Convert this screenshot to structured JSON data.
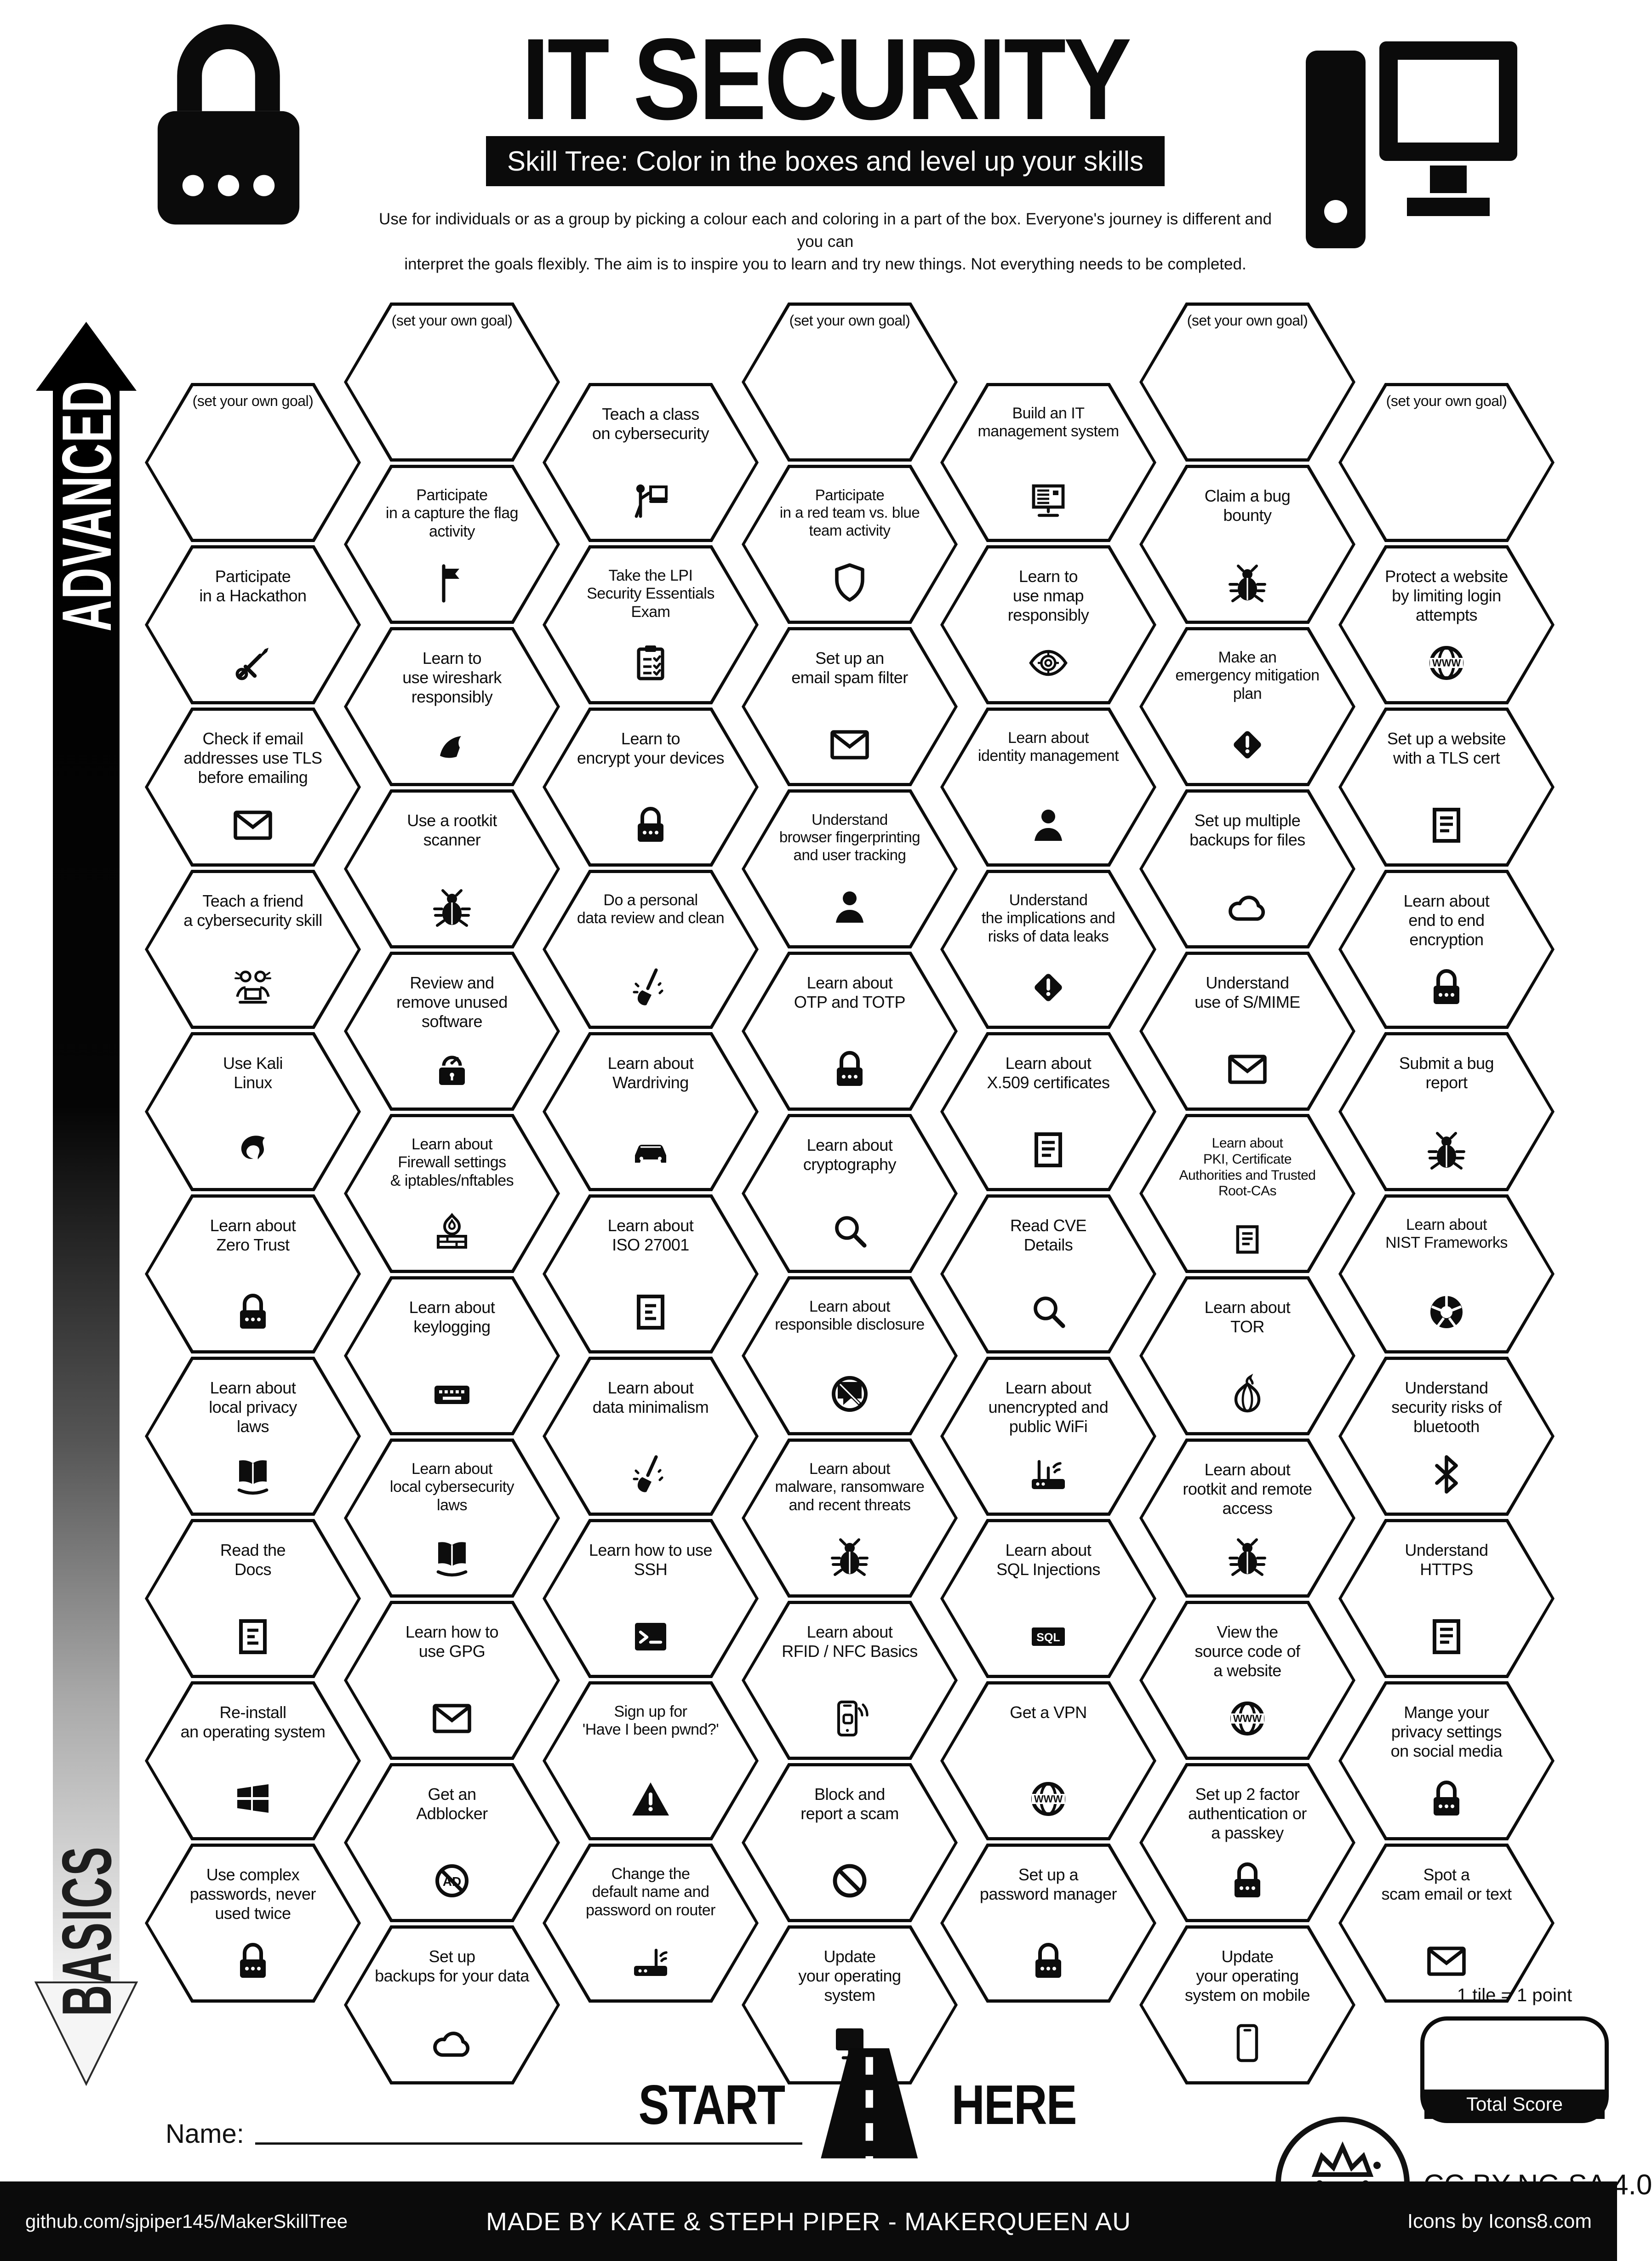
{
  "header": {
    "title": "IT SECURITY",
    "subtitle": "Skill Tree:  Color in the boxes and level up your skills",
    "description": "Use for individuals or as a group by picking a colour each and coloring in a part of the box.  Everyone's journey is different and you can\ninterpret the goals flexibly.  The aim is to inspire you to learn and try new things. Not everything needs to be completed.",
    "left_icon": "padlock-icon",
    "right_icon": "desktop-computer-icon"
  },
  "axis": {
    "advanced": "ADVANCED",
    "basics": "BASICS"
  },
  "colors": {
    "ink": "#0c0c0c",
    "paper": "#ffffff"
  },
  "tiles": [
    {
      "col": 0,
      "row": 0,
      "goal": true,
      "label": "(set your own goal)"
    },
    {
      "col": 0,
      "row": 1,
      "label": "Participate\nin a Hackathon",
      "icon": "tools-icon"
    },
    {
      "col": 0,
      "row": 2,
      "label": "Check if email\naddresses use TLS\nbefore emailing",
      "icon": "email-icon"
    },
    {
      "col": 0,
      "row": 3,
      "label": "Teach a friend\na cybersecurity skill",
      "icon": "teach-friends-icon"
    },
    {
      "col": 0,
      "row": 4,
      "label": "Use Kali\nLinux",
      "icon": "kali-linux-icon"
    },
    {
      "col": 0,
      "row": 5,
      "label": "Learn about\nZero Trust",
      "icon": "padlock-icon"
    },
    {
      "col": 0,
      "row": 6,
      "label": "Learn about\nlocal privacy\nlaws",
      "icon": "law-book-icon"
    },
    {
      "col": 0,
      "row": 7,
      "label": "Read the\nDocs",
      "icon": "document-icon"
    },
    {
      "col": 0,
      "row": 8,
      "label": "Re-install\nan operating system",
      "icon": "windows-icon"
    },
    {
      "col": 0,
      "row": 9,
      "label": "Use complex\npasswords, never\nused twice",
      "icon": "padlock-icon"
    },
    {
      "col": 1,
      "row": 0,
      "goal": true,
      "label": "(set your own goal)"
    },
    {
      "col": 1,
      "row": 1,
      "label": "Participate\nin a capture the flag\nactivity",
      "icon": "flag-icon",
      "fs": 34
    },
    {
      "col": 1,
      "row": 2,
      "label": "Learn to\nuse wireshark\nresponsibly",
      "icon": "shark-fin-icon"
    },
    {
      "col": 1,
      "row": 3,
      "label": "Use a rootkit\nscanner",
      "icon": "bug-icon"
    },
    {
      "col": 1,
      "row": 4,
      "label": "Review and\nremove unused\nsoftware",
      "icon": "lock-dial-icon"
    },
    {
      "col": 1,
      "row": 5,
      "label": "Learn about\nFirewall settings\n& iptables/nftables",
      "icon": "firewall-icon",
      "fs": 34
    },
    {
      "col": 1,
      "row": 6,
      "label": "Learn about\nkeylogging",
      "icon": "keyboard-icon"
    },
    {
      "col": 1,
      "row": 7,
      "label": "Learn about\nlocal cybersecurity\nlaws",
      "icon": "law-book-icon",
      "fs": 34
    },
    {
      "col": 1,
      "row": 8,
      "label": "Learn how to\nuse GPG",
      "icon": "email-icon"
    },
    {
      "col": 1,
      "row": 9,
      "label": "Get an\nAdblocker",
      "icon": "adblocker-icon"
    },
    {
      "col": 1,
      "row": 10,
      "label": "Set up\nbackups for your data",
      "icon": "cloud-icon"
    },
    {
      "col": 2,
      "row": 0,
      "label": "Teach a class\non cybersecurity",
      "icon": "presenter-icon"
    },
    {
      "col": 2,
      "row": 1,
      "label": "Take the LPI\nSecurity Essentials\nExam",
      "icon": "clipboard-icon",
      "fs": 34
    },
    {
      "col": 2,
      "row": 2,
      "label": "Learn to\nencrypt your devices",
      "icon": "padlock-icon"
    },
    {
      "col": 2,
      "row": 3,
      "label": "Do a personal\ndata review and clean",
      "icon": "broom-icon",
      "fs": 34
    },
    {
      "col": 2,
      "row": 4,
      "label": "Learn about\nWardriving",
      "icon": "car-icon"
    },
    {
      "col": 2,
      "row": 5,
      "label": "Learn about\nISO 27001",
      "icon": "document-icon"
    },
    {
      "col": 2,
      "row": 6,
      "label": "Learn about\ndata minimalism",
      "icon": "broom-icon"
    },
    {
      "col": 2,
      "row": 7,
      "label": "Learn how to use\nSSH",
      "icon": "terminal-icon"
    },
    {
      "col": 2,
      "row": 8,
      "label": "Sign up for\n'Have I been pwnd?'",
      "icon": "warning-triangle-icon",
      "fs": 34
    },
    {
      "col": 2,
      "row": 9,
      "label": "Change the\ndefault name and\npassword on router",
      "icon": "router-icon",
      "fs": 34
    },
    {
      "col": 3,
      "row": 0,
      "goal": true,
      "label": "(set your own goal)"
    },
    {
      "col": 3,
      "row": 1,
      "label": "Participate\nin a red team vs. blue\nteam activity",
      "icon": "shield-icon",
      "fs": 33
    },
    {
      "col": 3,
      "row": 2,
      "label": "Set up an\nemail spam filter",
      "icon": "email-icon"
    },
    {
      "col": 3,
      "row": 3,
      "label": "Understand\nbrowser fingerprinting\nand user tracking",
      "icon": "person-icon",
      "fs": 33
    },
    {
      "col": 3,
      "row": 4,
      "label": "Learn about\nOTP and TOTP",
      "icon": "padlock-icon"
    },
    {
      "col": 3,
      "row": 5,
      "label": "Learn about\ncryptography",
      "icon": "magnifier-icon"
    },
    {
      "col": 3,
      "row": 6,
      "label": "Learn about\nresponsible disclosure",
      "icon": "no-chat-icon",
      "fs": 34
    },
    {
      "col": 3,
      "row": 7,
      "label": "Learn about\nmalware, ransomware\nand recent threats",
      "icon": "bug-icon",
      "fs": 34
    },
    {
      "col": 3,
      "row": 8,
      "label": "Learn about\nRFID / NFC Basics",
      "icon": "phone-nfc-icon"
    },
    {
      "col": 3,
      "row": 9,
      "label": "Block and\nreport a scam",
      "icon": "block-sign-icon"
    },
    {
      "col": 3,
      "row": 10,
      "label": "Update\nyour operating\nsystem",
      "icon": "monitor-icon"
    },
    {
      "col": 4,
      "row": 0,
      "label": "Build an IT\nmanagement system",
      "icon": "computer-list-icon",
      "fs": 34
    },
    {
      "col": 4,
      "row": 1,
      "label": "Learn to\nuse nmap\nresponsibly",
      "icon": "eye-target-icon"
    },
    {
      "col": 4,
      "row": 2,
      "label": "Learn about\nidentity management",
      "icon": "person-icon",
      "fs": 34
    },
    {
      "col": 4,
      "row": 3,
      "label": "Understand\nthe implications and\nrisks of data leaks",
      "icon": "diamond-warning-icon",
      "fs": 34
    },
    {
      "col": 4,
      "row": 4,
      "label": "Learn about\nX.509 certificates",
      "icon": "certificate-icon"
    },
    {
      "col": 4,
      "row": 5,
      "label": "Read CVE\nDetails",
      "icon": "magnifier-icon"
    },
    {
      "col": 4,
      "row": 6,
      "label": "Learn about\nunencrypted and\npublic WiFi",
      "icon": "wifi-router-icon"
    },
    {
      "col": 4,
      "row": 7,
      "label": "Learn about\nSQL Injections",
      "icon": "sql-icon"
    },
    {
      "col": 4,
      "row": 8,
      "label": "Get a VPN",
      "icon": "globe-www-icon"
    },
    {
      "col": 4,
      "row": 9,
      "label": "Set up a\npassword manager",
      "icon": "padlock-icon"
    },
    {
      "col": 5,
      "row": 0,
      "goal": true,
      "label": "(set your own goal)"
    },
    {
      "col": 5,
      "row": 1,
      "label": "Claim a bug\nbounty",
      "icon": "bug-icon"
    },
    {
      "col": 5,
      "row": 2,
      "label": "Make an\nemergency mitigation\nplan",
      "icon": "diamond-warning-icon",
      "fs": 34
    },
    {
      "col": 5,
      "row": 3,
      "label": "Set up multiple\nbackups for files",
      "icon": "cloud-icon"
    },
    {
      "col": 5,
      "row": 4,
      "label": "Understand\nuse of S/MIME",
      "icon": "email-icon"
    },
    {
      "col": 5,
      "row": 5,
      "label": "Learn about\nPKI, Certificate\nAuthorities and Trusted\nRoot-CAs",
      "icon": "certificate-icon",
      "fs": 30
    },
    {
      "col": 5,
      "row": 6,
      "label": "Learn about\nTOR",
      "icon": "onion-icon"
    },
    {
      "col": 5,
      "row": 7,
      "label": "Learn about\nrootkit and remote\naccess",
      "icon": "bug-icon"
    },
    {
      "col": 5,
      "row": 8,
      "label": "View the\nsource code of\na website",
      "icon": "globe-www-icon"
    },
    {
      "col": 5,
      "row": 9,
      "label": "Set up 2 factor\nauthentication or\na passkey",
      "icon": "padlock-icon"
    },
    {
      "col": 5,
      "row": 10,
      "label": "Update\nyour operating\nsystem on mobile",
      "icon": "smartphone-icon"
    },
    {
      "col": 6,
      "row": 0,
      "goal": true,
      "label": "(set your own goal)"
    },
    {
      "col": 6,
      "row": 1,
      "label": "Protect a website\nby limiting login\nattempts",
      "icon": "globe-www-icon"
    },
    {
      "col": 6,
      "row": 2,
      "label": "Set up a website\nwith a TLS cert",
      "icon": "certificate-icon"
    },
    {
      "col": 6,
      "row": 3,
      "label": "Learn about\nend to end\nencryption",
      "icon": "padlock-icon"
    },
    {
      "col": 6,
      "row": 4,
      "label": "Submit a bug\nreport",
      "icon": "bug-icon"
    },
    {
      "col": 6,
      "row": 5,
      "label": "Learn about\nNIST Frameworks",
      "icon": "nist-donut-icon",
      "fs": 34
    },
    {
      "col": 6,
      "row": 6,
      "label": "Understand\nsecurity risks of\nbluetooth",
      "icon": "bluetooth-icon"
    },
    {
      "col": 6,
      "row": 7,
      "label": "Understand\nHTTPS",
      "icon": "certificate-icon"
    },
    {
      "col": 6,
      "row": 8,
      "label": "Mange your\nprivacy settings\non social media",
      "icon": "padlock-icon"
    },
    {
      "col": 6,
      "row": 9,
      "label": "Spot a\nscam email or text",
      "icon": "email-icon"
    }
  ],
  "start": {
    "start_label": "START",
    "here_label": "HERE",
    "road_icon": "road-icon"
  },
  "score": {
    "note": "1 tile = 1 point",
    "total_label": "Total Score"
  },
  "name_section": {
    "label": "Name:"
  },
  "license": {
    "text": "CC BY-NC-SA 4.0",
    "logo": "makerqueen-logo"
  },
  "footer": {
    "github": "github.com/sjpiper145/MakerSkillTree",
    "credit": "MADE BY KATE & STEPH PIPER  -  MAKERQUEEN AU",
    "icons_credit": "Icons by Icons8.com"
  }
}
